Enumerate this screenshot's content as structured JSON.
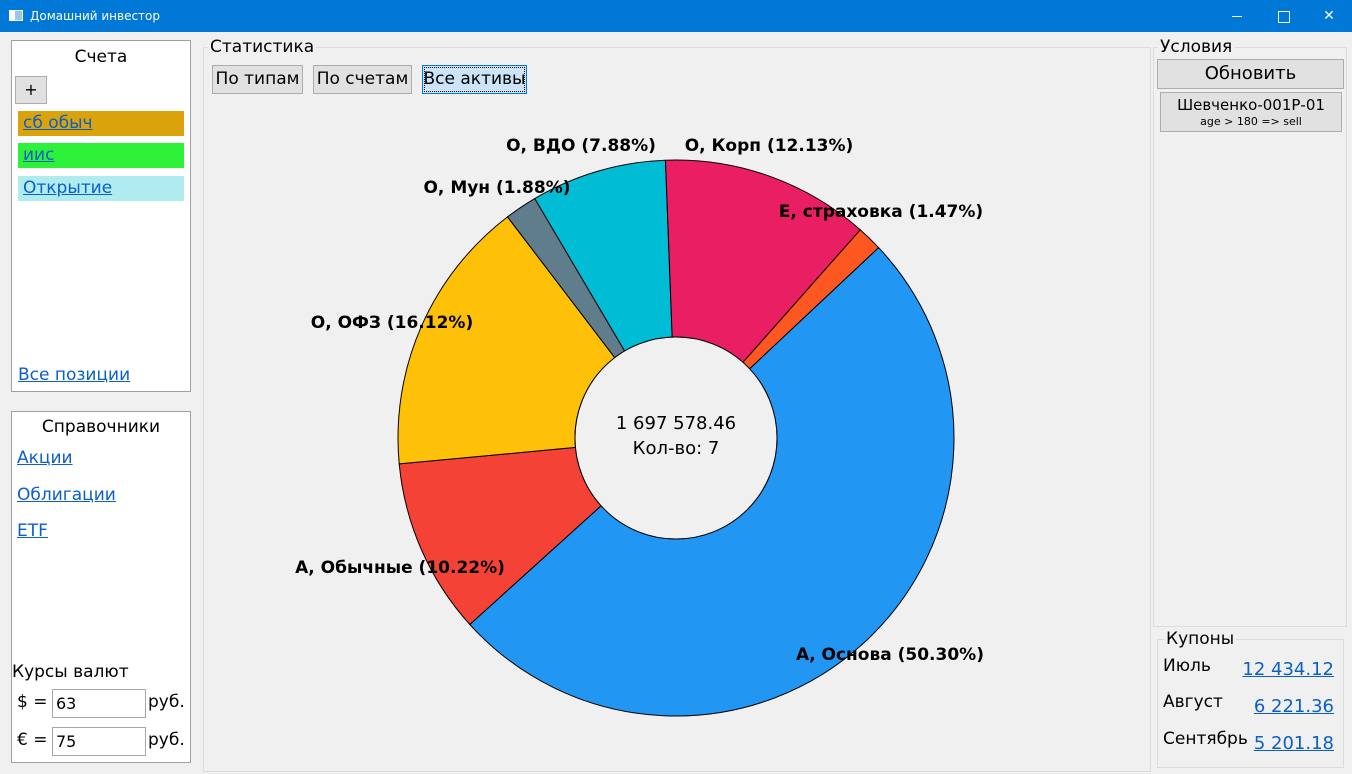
{
  "window": {
    "title": "Домашний инвестор"
  },
  "accounts": {
    "title": "Счета",
    "add_label": "+",
    "items": [
      {
        "label": "сб обыч",
        "color": "#daa30c"
      },
      {
        "label": "иис",
        "color": "#2ef23a"
      },
      {
        "label": "Открытие",
        "color": "#b0ebf0"
      }
    ],
    "all_positions": "Все позиции"
  },
  "references": {
    "title": "Справочники",
    "items": [
      "Акции",
      "Облигации",
      "ETF"
    ]
  },
  "currency": {
    "title": "Курсы валют",
    "rows": [
      {
        "symbol": "$ =",
        "value": "63",
        "unit": "руб."
      },
      {
        "symbol": "€ =",
        "value": "75",
        "unit": "руб."
      }
    ]
  },
  "statistics": {
    "title": "Статистика",
    "tabs": [
      "По типам",
      "По счетам",
      "Все активы"
    ],
    "active_tab": "Все активы"
  },
  "chart_data": {
    "type": "pie",
    "style": "donut",
    "center_total": "1 697 578.46",
    "center_count": "Кол-во: 7",
    "slices": [
      {
        "label": "Е, страховка (1.47%)",
        "value": 1.47,
        "color": "#ff5722"
      },
      {
        "label": "А, Основа (50.30%)",
        "value": 50.3,
        "color": "#2196f3"
      },
      {
        "label": "А, Обычные (10.22%)",
        "value": 10.22,
        "color": "#f44336"
      },
      {
        "label": "О, ОФЗ (16.12%)",
        "value": 16.12,
        "color": "#ffc107"
      },
      {
        "label": "О, Мун (1.88%)",
        "value": 1.88,
        "color": "#607d8b"
      },
      {
        "label": "О, ВДО (7.88%)",
        "value": 7.88,
        "color": "#00bcd4"
      },
      {
        "label": "О, Корп (12.13%)",
        "value": 12.13,
        "color": "#e91e63"
      }
    ]
  },
  "conditions": {
    "title": "Условия",
    "refresh_label": "Обновить",
    "cards": [
      {
        "name": "Шевченко-001Р-01",
        "rule": "age > 180 => sell"
      }
    ]
  },
  "coupons": {
    "title": "Купоны",
    "items": [
      {
        "month": "Июль",
        "amount": "12 434.12"
      },
      {
        "month": "Август",
        "amount": "6 221.36"
      },
      {
        "month": "Сентябрь",
        "amount": "5 201.18"
      }
    ]
  }
}
